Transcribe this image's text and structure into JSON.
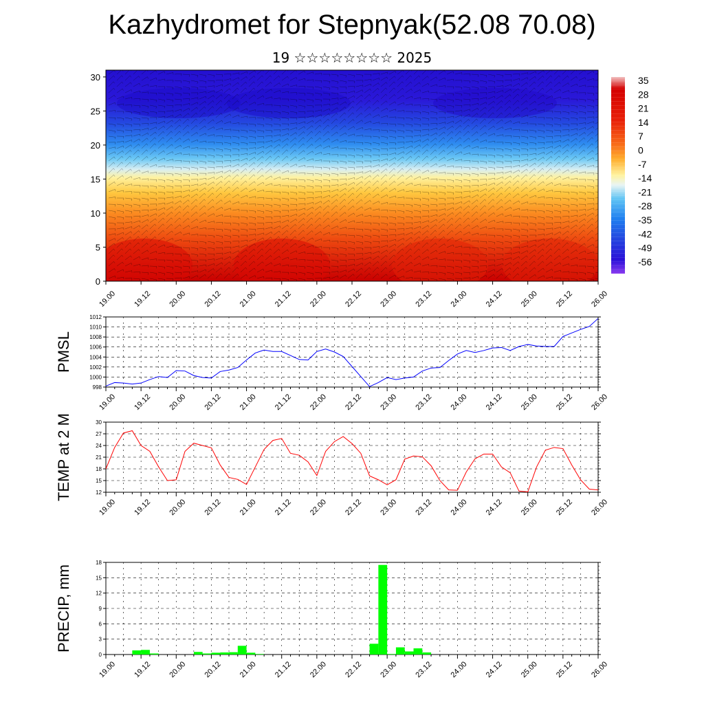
{
  "header": {
    "title": "Kazhydromet for Stepnyak(52.08 70.08)",
    "subtitle": "19 ☆☆☆☆☆☆☆☆ 2025"
  },
  "chart_data": [
    {
      "type": "heatmap",
      "x_tick_labels": [
        "19.00",
        "19.12",
        "20.00",
        "20.12",
        "21.00",
        "21.12",
        "22.00",
        "22.12",
        "23.00",
        "23.12",
        "24.00",
        "24.12",
        "25.00",
        "25.12",
        "26.00"
      ],
      "y_ticks": [
        0,
        5,
        10,
        15,
        20,
        25,
        30
      ],
      "ylim": [
        0,
        31
      ],
      "colorbar_labels": [
        "35",
        "28",
        "21",
        "14",
        "7",
        "0",
        "-7",
        "-14",
        "-21",
        "-28",
        "-35",
        "-42",
        "-49",
        "-56"
      ],
      "colormap_colors": [
        "#7a3cf0",
        "#2a10d8",
        "#2a6df0",
        "#38b0f0",
        "#c8e8f0",
        "#fff8b8",
        "#ffd040",
        "#ff9020",
        "#f05010",
        "#e01010",
        "#c80000",
        "#f0b0b0"
      ],
      "has_wind_barbs": true
    },
    {
      "type": "line",
      "ylabel": "PMSL",
      "ylim": [
        998,
        1012
      ],
      "y_ticks": [
        998,
        1000,
        1002,
        1004,
        1006,
        1008,
        1010,
        1012
      ],
      "x_tick_labels": [
        "19.00",
        "19.12",
        "20.00",
        "20.12",
        "21.00",
        "21.12",
        "22.00",
        "22.12",
        "23.00",
        "23.12",
        "24.00",
        "24.12",
        "25.00",
        "25.12",
        "26.00"
      ],
      "x": [
        0,
        3,
        6,
        9,
        12,
        15,
        18,
        21,
        24,
        27,
        30,
        33,
        36,
        39,
        42,
        45,
        48,
        51,
        54,
        57,
        60,
        63,
        66,
        69,
        72,
        75,
        78,
        81,
        84,
        87,
        90,
        93,
        96,
        99,
        102,
        105,
        108,
        111,
        114,
        117,
        120,
        123,
        126,
        129,
        132,
        135,
        138,
        141,
        144,
        147,
        150,
        153,
        156,
        159,
        162,
        165,
        168
      ],
      "series": [
        {
          "color": "#0000ff",
          "values": [
            998.2,
            998.9,
            998.8,
            998.6,
            998.8,
            999.5,
            1000.1,
            999.9,
            1001.3,
            1001.2,
            1000.3,
            999.9,
            999.8,
            1001.1,
            1001.4,
            1001.9,
            1003.4,
            1004.8,
            1005.4,
            1005.1,
            1005.1,
            1004.3,
            1003.5,
            1003.4,
            1005.1,
            1005.6,
            1005.0,
            1004.1,
            1002.1,
            1000.1,
            998.1,
            998.9,
            999.9,
            999.5,
            999.8,
            1000.0,
            1001.2,
            1001.8,
            1001.9,
            1003.3,
            1004.6,
            1005.3,
            1004.9,
            1005.3,
            1005.8,
            1005.9,
            1005.3,
            1006.1,
            1006.5,
            1006.2,
            1006.1,
            1006.1,
            1008.1,
            1008.8,
            1009.5,
            1010.1,
            1011.7
          ]
        }
      ]
    },
    {
      "type": "line",
      "ylabel": "TEMP at 2 M",
      "ylim": [
        12,
        30
      ],
      "y_ticks": [
        12,
        15,
        18,
        21,
        24,
        27,
        30
      ],
      "x_tick_labels": [
        "19.00",
        "19.12",
        "20.00",
        "20.12",
        "21.00",
        "21.12",
        "22.00",
        "22.12",
        "23.00",
        "23.12",
        "24.00",
        "24.12",
        "25.00",
        "25.12",
        "26.00"
      ],
      "x": [
        0,
        3,
        6,
        9,
        12,
        15,
        18,
        21,
        24,
        27,
        30,
        33,
        36,
        39,
        42,
        45,
        48,
        51,
        54,
        57,
        60,
        63,
        66,
        69,
        72,
        75,
        78,
        81,
        84,
        87,
        90,
        93,
        96,
        99,
        102,
        105,
        108,
        111,
        114,
        117,
        120,
        123,
        126,
        129,
        132,
        135,
        138,
        141,
        144,
        147,
        150,
        153,
        156,
        159,
        162,
        165,
        168
      ],
      "series": [
        {
          "color": "#ff0000",
          "values": [
            18.0,
            23.5,
            27.2,
            27.8,
            24.0,
            22.5,
            18.5,
            15.0,
            15.2,
            22.5,
            24.6,
            24.0,
            23.4,
            19.0,
            15.8,
            15.3,
            14.0,
            18.5,
            23.0,
            25.3,
            25.8,
            22.0,
            21.5,
            19.8,
            16.3,
            22.5,
            25.0,
            26.3,
            24.5,
            22.0,
            16.2,
            15.2,
            13.9,
            15.2,
            20.5,
            21.3,
            21.1,
            18.8,
            15.0,
            12.6,
            12.5,
            17.2,
            20.6,
            21.8,
            21.8,
            18.5,
            17.0,
            12.3,
            12.1,
            18.5,
            22.8,
            23.5,
            23.2,
            19.0,
            15.2,
            12.8,
            12.6
          ]
        }
      ]
    },
    {
      "type": "bar",
      "ylabel": "PRECIP, mm",
      "ylim": [
        0,
        18
      ],
      "y_ticks": [
        0,
        3,
        6,
        9,
        12,
        15,
        18
      ],
      "x_tick_labels": [
        "19.00",
        "19.12",
        "20.00",
        "20.12",
        "21.00",
        "21.12",
        "22.00",
        "22.12",
        "23.00",
        "23.12",
        "24.00",
        "24.12",
        "25.00",
        "25.12",
        "26.00"
      ],
      "x": [
        9,
        12,
        15,
        30,
        33,
        36,
        39,
        42,
        45,
        48,
        51,
        90,
        93,
        96,
        99,
        102,
        105,
        108
      ],
      "values": [
        0.8,
        0.9,
        0.2,
        0.5,
        0.2,
        0.35,
        0.4,
        0.45,
        1.7,
        0.35,
        0.1,
        2.1,
        17.5,
        0.1,
        1.4,
        0.6,
        1.2,
        0.4
      ],
      "color": "#00ff00"
    }
  ]
}
